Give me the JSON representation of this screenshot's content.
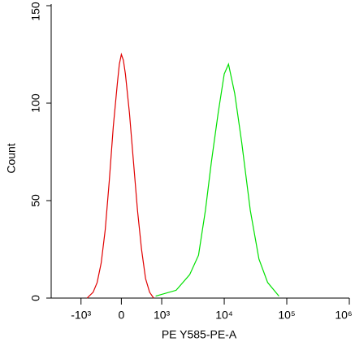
{
  "chart_data": {
    "type": "line",
    "xlabel": "PE Y585-PE-A",
    "ylabel": "Count",
    "xscale": "biexponential",
    "xlim": [
      -3000,
      1000000
    ],
    "ylim": [
      0,
      150
    ],
    "xticks": [
      {
        "value": -1000,
        "label": "-10³"
      },
      0,
      {
        "value": 1000,
        "label": "10³"
      },
      {
        "value": 10000,
        "label": "10⁴"
      },
      {
        "value": 100000,
        "label": "10⁵"
      },
      {
        "value": 1000000,
        "label": "10⁶"
      }
    ],
    "yticks": [
      0,
      50,
      100,
      150
    ],
    "series": [
      {
        "color": "#e00000",
        "x": [
          -850,
          -700,
          -600,
          -500,
          -400,
          -300,
          -200,
          -100,
          -50,
          0,
          50,
          100,
          200,
          300,
          400,
          500,
          600,
          700,
          800
        ],
        "values": [
          0,
          3,
          8,
          18,
          35,
          60,
          88,
          110,
          120,
          125,
          122,
          115,
          95,
          70,
          45,
          25,
          10,
          3,
          0
        ]
      },
      {
        "color": "#00e000",
        "x": [
          850,
          1700,
          2800,
          3880,
          5000,
          6240,
          8000,
          10000,
          11700,
          14700,
          19000,
          26100,
          35900,
          49400,
          75000
        ],
        "values": [
          1,
          4,
          12,
          22,
          45,
          70,
          95,
          115,
          120,
          105,
          80,
          45,
          20,
          8,
          1
        ]
      }
    ]
  }
}
